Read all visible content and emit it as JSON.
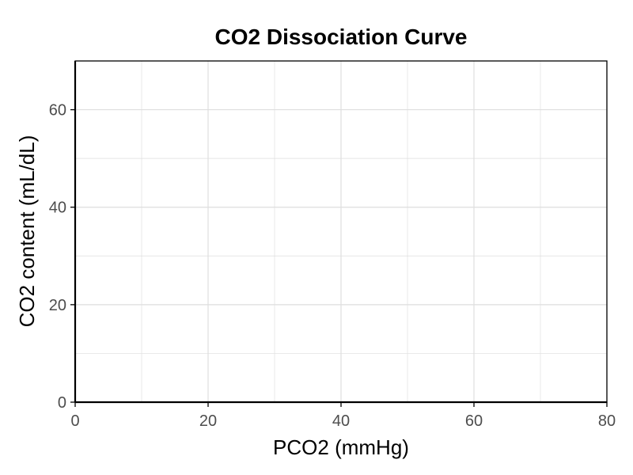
{
  "chart_data": {
    "type": "line",
    "title": "CO2 Dissociation Curve",
    "xlabel": "PCO2 (mmHg)",
    "ylabel": "CO2 content (mL/dL)",
    "xlim": [
      0,
      80
    ],
    "ylim": [
      0,
      70
    ],
    "x_ticks": [
      0,
      20,
      40,
      60,
      80
    ],
    "y_ticks": [
      0,
      20,
      40,
      60
    ],
    "x_minor_ticks": [
      10,
      30,
      50,
      70
    ],
    "y_minor_ticks": [
      10,
      30,
      50
    ],
    "x_tick_labels": [
      "0",
      "20",
      "40",
      "60",
      "80"
    ],
    "y_tick_labels": [
      "0",
      "20",
      "40",
      "60"
    ],
    "grid": true,
    "series": [],
    "colors": {
      "grid": "#dedede",
      "axis": "#000000",
      "tick_label": "#4d4d4d",
      "background": "#ffffff"
    }
  }
}
